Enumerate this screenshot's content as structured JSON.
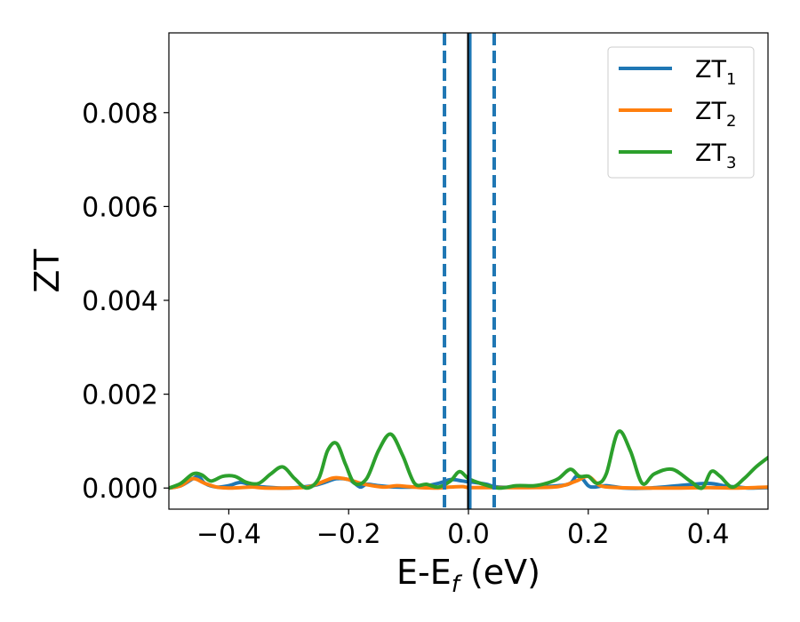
{
  "chart_data": {
    "type": "line",
    "xlabel": {
      "main": "E-E",
      "sub": "f",
      "tail": " (eV)"
    },
    "ylabel": "ZT",
    "xlim": [
      -0.5,
      0.5
    ],
    "ylim": [
      -0.00045,
      0.0097
    ],
    "xticks": [
      -0.4,
      -0.2,
      0.0,
      0.2,
      0.4
    ],
    "xtick_labels": [
      "−0.4",
      "−0.2",
      "0.0",
      "0.2",
      "0.4"
    ],
    "yticks": [
      0.0,
      0.002,
      0.004,
      0.006,
      0.008
    ],
    "ytick_labels": [
      "0.000",
      "0.002",
      "0.004",
      "0.006",
      "0.008"
    ],
    "grid": false,
    "legend_position": "top-right",
    "vlines": [
      {
        "x": -0.04,
        "style": "dashed",
        "color": "#1f77b4"
      },
      {
        "x": 0.0,
        "style": "solid",
        "color": "#000000"
      },
      {
        "x": 0.003,
        "style": "solid",
        "color": "#1f77b4"
      },
      {
        "x": 0.043,
        "style": "dashed",
        "color": "#1f77b4"
      }
    ],
    "series": [
      {
        "name_main": "ZT",
        "name_sub": "1",
        "color": "#1f77b4",
        "x": [
          -0.5,
          -0.48,
          -0.46,
          -0.45,
          -0.44,
          -0.42,
          -0.4,
          -0.38,
          -0.36,
          -0.34,
          -0.3,
          -0.26,
          -0.24,
          -0.22,
          -0.2,
          -0.19,
          -0.18,
          -0.17,
          -0.15,
          -0.12,
          -0.08,
          -0.05,
          -0.03,
          -0.01,
          0.0,
          0.01,
          0.03,
          0.05,
          0.1,
          0.15,
          0.17,
          0.18,
          0.19,
          0.2,
          0.21,
          0.23,
          0.26,
          0.3,
          0.35,
          0.4,
          0.43,
          0.45,
          0.47,
          0.5
        ],
        "y": [
          0.0,
          5e-05,
          0.0002,
          0.00025,
          0.0001,
          2e-05,
          5e-05,
          0.00012,
          5e-05,
          2e-05,
          0.0,
          5e-05,
          0.00012,
          0.0002,
          0.00018,
          0.0001,
          2e-05,
          8e-05,
          5e-05,
          2e-05,
          3e-05,
          0.0001,
          0.00018,
          0.00015,
          0.00013,
          0.00012,
          8e-05,
          2e-05,
          2e-05,
          5e-05,
          0.0001,
          0.00025,
          0.0002,
          5e-05,
          2e-05,
          5e-05,
          0.0,
          0.0,
          5e-05,
          0.0001,
          4e-05,
          2e-05,
          0.0,
          1e-05
        ]
      },
      {
        "name_main": "ZT",
        "name_sub": "2",
        "color": "#ff7f0e",
        "x": [
          -0.5,
          -0.48,
          -0.46,
          -0.44,
          -0.42,
          -0.4,
          -0.38,
          -0.36,
          -0.34,
          -0.3,
          -0.27,
          -0.25,
          -0.23,
          -0.22,
          -0.2,
          -0.18,
          -0.16,
          -0.14,
          -0.12,
          -0.1,
          -0.08,
          -0.05,
          -0.03,
          -0.01,
          0.0,
          0.02,
          0.05,
          0.1,
          0.15,
          0.18,
          0.2,
          0.22,
          0.25,
          0.3,
          0.35,
          0.4,
          0.45,
          0.5
        ],
        "y": [
          0.0,
          5e-05,
          0.0002,
          0.0001,
          2e-05,
          0.0,
          1e-05,
          2e-05,
          0.0,
          0.0,
          2e-05,
          0.0001,
          0.0002,
          0.00022,
          0.00018,
          0.0001,
          5e-05,
          2e-05,
          5e-05,
          3e-05,
          1e-05,
          0.0,
          2e-05,
          3e-05,
          1e-05,
          1e-05,
          1e-05,
          1e-05,
          3e-05,
          0.00015,
          0.00025,
          5e-05,
          1e-05,
          0.0,
          0.0,
          1e-05,
          0.0,
          2e-05
        ]
      },
      {
        "name_main": "ZT",
        "name_sub": "3",
        "color": "#2ca02c",
        "x": [
          -0.5,
          -0.48,
          -0.46,
          -0.445,
          -0.43,
          -0.41,
          -0.39,
          -0.37,
          -0.35,
          -0.33,
          -0.31,
          -0.29,
          -0.27,
          -0.25,
          -0.235,
          -0.22,
          -0.205,
          -0.19,
          -0.17,
          -0.15,
          -0.13,
          -0.11,
          -0.09,
          -0.07,
          -0.05,
          -0.03,
          -0.015,
          0.0,
          0.02,
          0.05,
          0.08,
          0.11,
          0.13,
          0.15,
          0.17,
          0.185,
          0.2,
          0.215,
          0.23,
          0.25,
          0.27,
          0.29,
          0.31,
          0.34,
          0.37,
          0.39,
          0.405,
          0.42,
          0.44,
          0.46,
          0.48,
          0.5
        ],
        "y": [
          0.0,
          0.0001,
          0.0003,
          0.00028,
          0.00015,
          0.00025,
          0.00025,
          0.00012,
          0.0001,
          0.0003,
          0.00045,
          0.0002,
          0.0,
          0.0002,
          0.0008,
          0.00095,
          0.0005,
          0.0001,
          0.0002,
          0.0008,
          0.00115,
          0.0007,
          0.0001,
          8e-05,
          2e-05,
          0.00015,
          0.00035,
          0.0002,
          0.0001,
          0.0,
          5e-05,
          5e-05,
          0.0001,
          0.0002,
          0.0004,
          0.00025,
          0.00025,
          0.0001,
          0.0003,
          0.0012,
          0.0008,
          0.0001,
          0.0003,
          0.0004,
          0.00015,
          0.0,
          0.00035,
          0.00025,
          2e-05,
          0.0002,
          0.00045,
          0.00065
        ]
      }
    ]
  }
}
